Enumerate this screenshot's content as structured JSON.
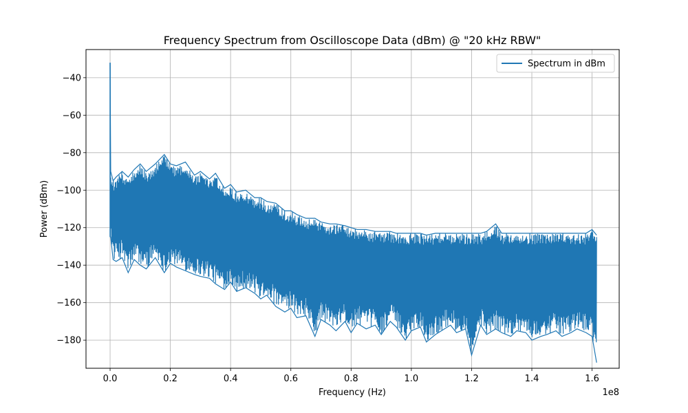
{
  "chart_data": {
    "type": "line",
    "title": "Frequency Spectrum from Oscilloscope Data (dBm) @ \"20 kHz RBW\"",
    "xlabel": "Frequency (Hz)",
    "ylabel": "Power (dBm)",
    "x_offset_label": "1e8",
    "xlim": [
      -0.08,
      1.69
    ],
    "ylim": [
      -195.0,
      -25.0
    ],
    "x_ticks": [
      0.0,
      0.2,
      0.4,
      0.6,
      0.8,
      1.0,
      1.2,
      1.4,
      1.6
    ],
    "x_tick_labels": [
      "0.0",
      "0.2",
      "0.4",
      "0.6",
      "0.8",
      "1.0",
      "1.2",
      "1.4",
      "1.6"
    ],
    "y_ticks": [
      -180,
      -160,
      -140,
      -120,
      -100,
      -80,
      -60,
      -40
    ],
    "y_tick_labels": [
      "−180",
      "−160",
      "−140",
      "−120",
      "−100",
      "−80",
      "−60",
      "−40"
    ],
    "grid": true,
    "legend": {
      "placement": "top-right",
      "entries": [
        "Spectrum in dBm"
      ]
    },
    "series": [
      {
        "name": "Spectrum in dBm",
        "color": "#1f77b4",
        "x": [
          0.0,
          0.002,
          0.01,
          0.02,
          0.04,
          0.06,
          0.08,
          0.1,
          0.12,
          0.15,
          0.18,
          0.2,
          0.22,
          0.25,
          0.28,
          0.3,
          0.33,
          0.35,
          0.38,
          0.4,
          0.42,
          0.45,
          0.48,
          0.5,
          0.52,
          0.55,
          0.58,
          0.6,
          0.62,
          0.65,
          0.68,
          0.7,
          0.73,
          0.75,
          0.78,
          0.8,
          0.82,
          0.85,
          0.88,
          0.9,
          0.93,
          0.95,
          0.98,
          1.0,
          1.03,
          1.05,
          1.08,
          1.1,
          1.13,
          1.15,
          1.18,
          1.2,
          1.23,
          1.25,
          1.28,
          1.3,
          1.33,
          1.35,
          1.38,
          1.4,
          1.43,
          1.45,
          1.48,
          1.5,
          1.53,
          1.55,
          1.58,
          1.6,
          1.615
        ],
        "y_upper": [
          -32,
          -90,
          -95,
          -93,
          -90,
          -93,
          -89,
          -86,
          -90,
          -86,
          -81,
          -86,
          -87,
          -85,
          -92,
          -90,
          -94,
          -91,
          -99,
          -97,
          -101,
          -100,
          -104,
          -104,
          -106,
          -107,
          -111,
          -111,
          -113,
          -115,
          -115,
          -117,
          -118,
          -118,
          -119,
          -120,
          -121,
          -121,
          -122,
          -122,
          -122,
          -123,
          -123,
          -123,
          -123,
          -124,
          -123,
          -123,
          -123,
          -123,
          -123,
          -123,
          -123,
          -122,
          -118,
          -123,
          -123,
          -123,
          -123,
          -123,
          -123,
          -123,
          -123,
          -123,
          -123,
          -123,
          -123,
          -121,
          -124
        ],
        "y_lower": [
          -125,
          -125,
          -137,
          -138,
          -136,
          -144,
          -137,
          -140,
          -142,
          -136,
          -144,
          -139,
          -141,
          -143,
          -145,
          -146,
          -147,
          -150,
          -153,
          -149,
          -154,
          -152,
          -155,
          -158,
          -156,
          -162,
          -165,
          -163,
          -168,
          -167,
          -178,
          -169,
          -172,
          -175,
          -170,
          -176,
          -171,
          -174,
          -172,
          -177,
          -170,
          -173,
          -180,
          -175,
          -173,
          -181,
          -177,
          -175,
          -172,
          -176,
          -174,
          -188,
          -172,
          -177,
          -174,
          -176,
          -178,
          -175,
          -176,
          -180,
          -178,
          -177,
          -175,
          -178,
          -176,
          -174,
          -176,
          -178,
          -192
        ]
      }
    ]
  }
}
